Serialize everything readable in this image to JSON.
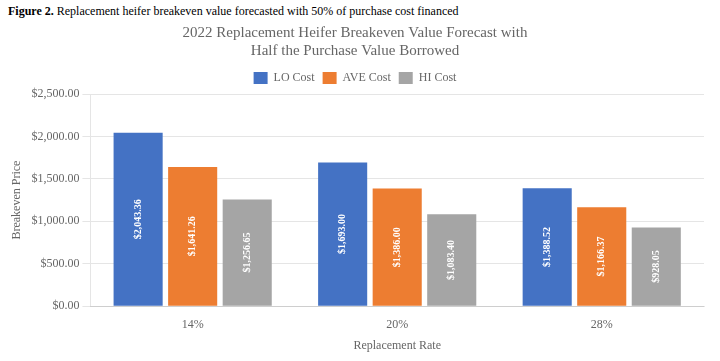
{
  "chart_data": {
    "type": "bar",
    "title": "2022 Replacement Heifer Breakeven Value Forecast with\nHalf the Purchase Value Borrowed",
    "annotations": [
      "Figure 2.",
      "Replacement heifer breakeven value forecasted with 50% of purchase cost financed"
    ],
    "xlabel": "Replacement Rate",
    "ylabel": "Breakeven Price",
    "categories": [
      "14%",
      "20%",
      "28%"
    ],
    "series": [
      {
        "name": "LO Cost",
        "color": "#4472C4",
        "values": [
          2043.36,
          1693.0,
          1388.52
        ],
        "value_labels": [
          "$2,043.36",
          "$1,693.00",
          "$1,388.52"
        ]
      },
      {
        "name": "AVE Cost",
        "color": "#ED7D31",
        "values": [
          1641.26,
          1386.0,
          1166.37
        ],
        "value_labels": [
          "$1,641.26",
          "$1,386.00",
          "$1,166.37"
        ]
      },
      {
        "name": "HI Cost",
        "color": "#A5A5A5",
        "values": [
          1256.65,
          1083.4,
          928.05
        ],
        "value_labels": [
          "$1,256.65",
          "$1,083.40",
          "$928.05"
        ]
      }
    ],
    "ylim": [
      0,
      2500
    ],
    "yticks": [
      {
        "value": 0,
        "label": "$0.00"
      },
      {
        "value": 500,
        "label": "$500.00"
      },
      {
        "value": 1000,
        "label": "$1,000.00"
      },
      {
        "value": 1500,
        "label": "$1,500.00"
      },
      {
        "value": 2000,
        "label": "$2,000.00"
      },
      {
        "value": 2500,
        "label": "$2,500.00"
      }
    ],
    "grid": true,
    "legend": "top",
    "data_labels": true
  }
}
